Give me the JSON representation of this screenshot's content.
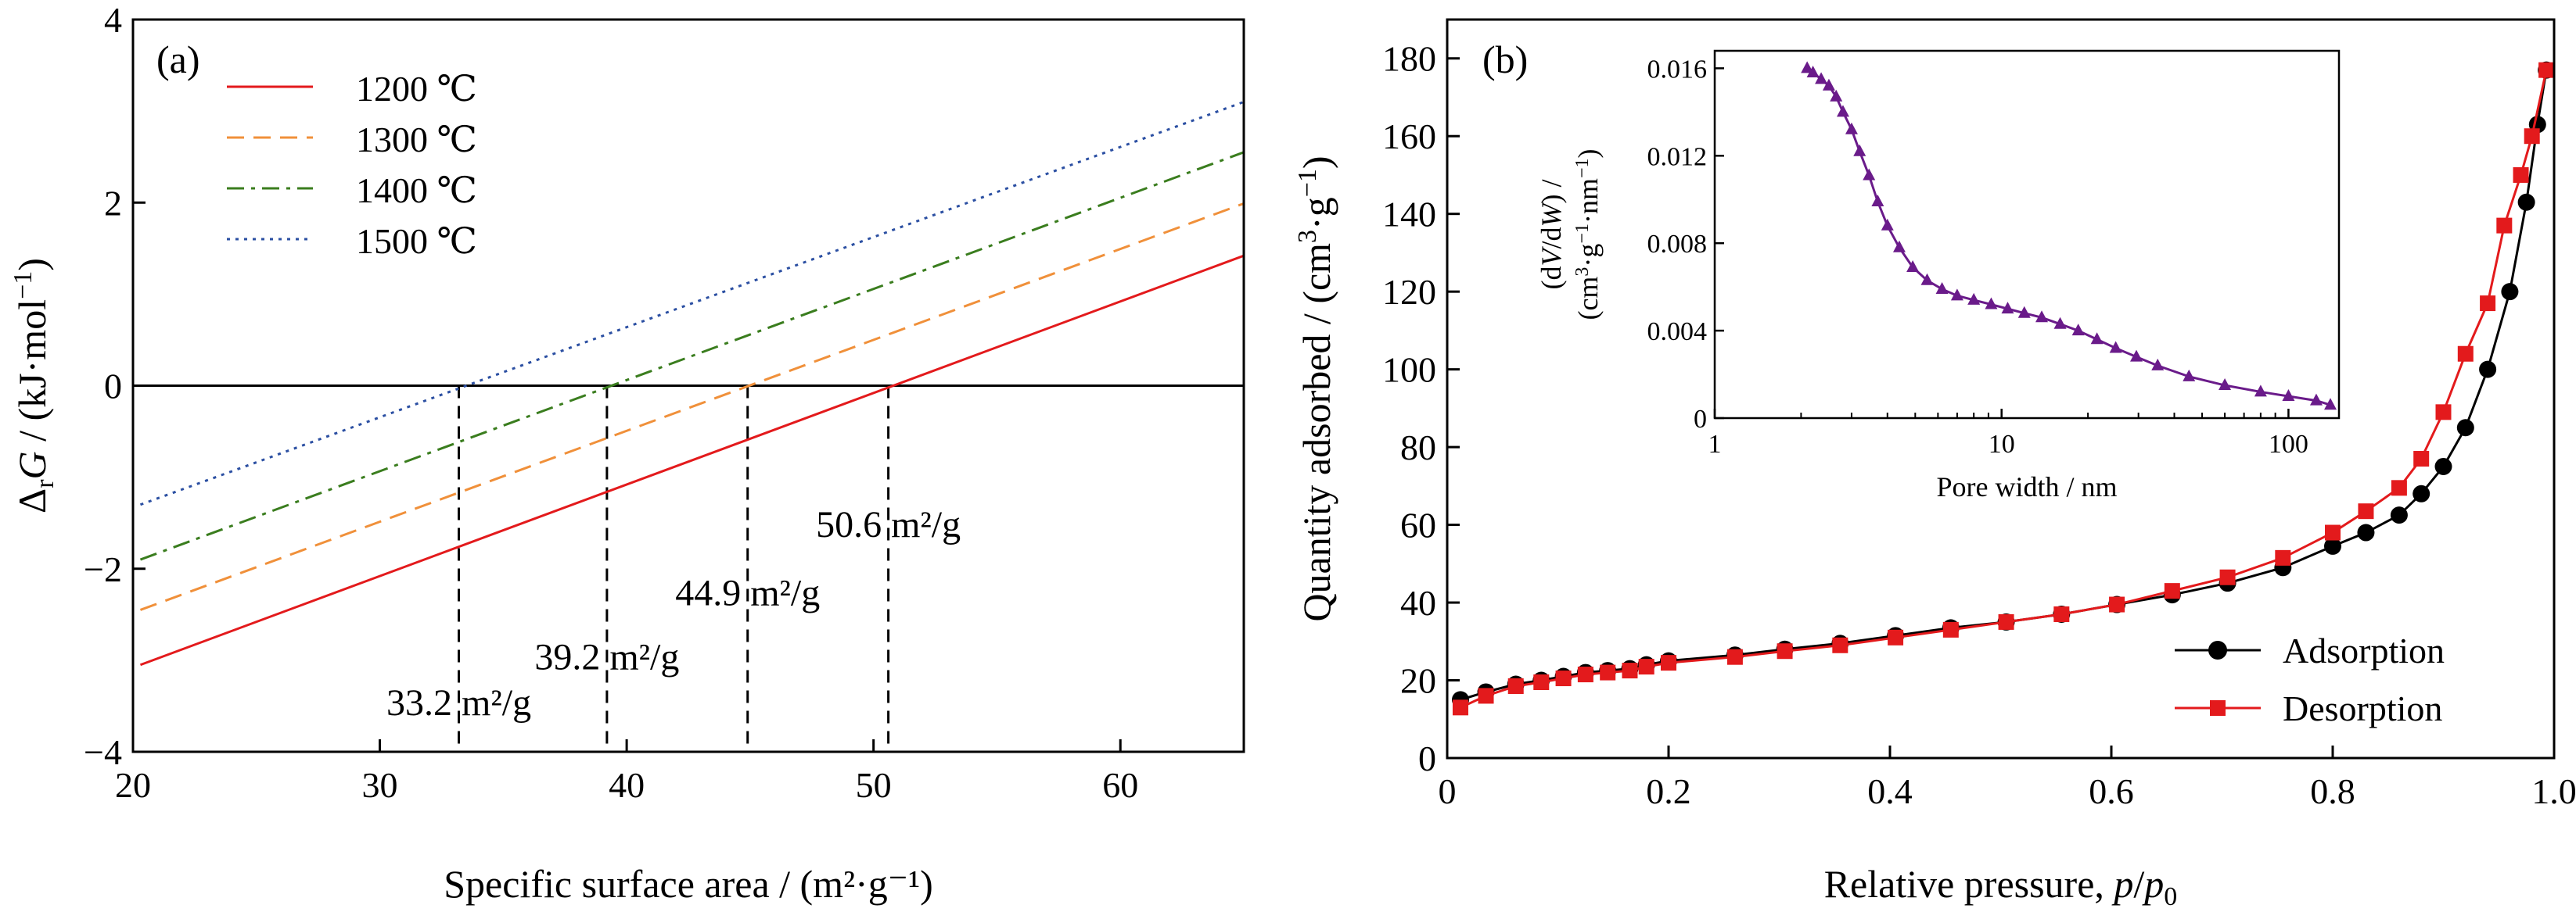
{
  "chart_data": [
    {
      "type": "line",
      "panel_label": "(a)",
      "xlabel": "Specific surface area / (m²·g⁻¹)",
      "ylabel_parts": [
        "Δ",
        "r",
        "G",
        " / (kJ·mol",
        "−1",
        ")"
      ],
      "xlim": [
        20,
        65
      ],
      "ylim": [
        -4,
        4
      ],
      "xticks": [
        20,
        30,
        40,
        50,
        60
      ],
      "yticks": [
        -4,
        -2,
        0,
        2,
        4
      ],
      "series": [
        {
          "name": "1200 ℃",
          "color": "#e31a1c",
          "dash": "solid",
          "x": [
            20.3,
            65
          ],
          "y": [
            -3.05,
            1.42
          ]
        },
        {
          "name": "1300 ℃",
          "color": "#f0903a",
          "dash": "dashed",
          "x": [
            20.3,
            65
          ],
          "y": [
            -2.45,
            1.99
          ]
        },
        {
          "name": "1400 ℃",
          "color": "#3a7d1e",
          "dash": "dashdot",
          "x": [
            20.3,
            65
          ],
          "y": [
            -1.9,
            2.55
          ]
        },
        {
          "name": "1500 ℃",
          "color": "#2b4fa2",
          "dash": "dotted",
          "x": [
            20.3,
            65
          ],
          "y": [
            -1.3,
            3.1
          ]
        }
      ],
      "zero_line": 0,
      "threshold_lines": [
        33.2,
        39.2,
        44.9,
        50.6
      ],
      "annotations": [
        {
          "value": "33.2",
          "unit": "m²/g",
          "x": 33.2,
          "color": "#2b4fa2",
          "anchor_x": 33.2,
          "anchor_y": -3.6
        },
        {
          "value": "39.2",
          "unit": "m²/g",
          "x": 39.2,
          "color": "#3a7d1e",
          "anchor_x": 39.2,
          "anchor_y": -3.1
        },
        {
          "value": "44.9",
          "unit": "m²/g",
          "x": 44.9,
          "color": "#f0903a",
          "anchor_x": 44.9,
          "anchor_y": -2.4
        },
        {
          "value": "50.6",
          "unit": "m²/g",
          "x": 50.6,
          "color": "#e31a1c",
          "anchor_x": 50.6,
          "anchor_y": -1.65
        }
      ],
      "legend_position": "top-left"
    },
    {
      "type": "line",
      "panel_label": "(b)",
      "xlabel_parts": [
        "Relative pressure, ",
        "p",
        "/",
        "p",
        "0"
      ],
      "ylabel_parts": [
        "Quantity adsorbed / (cm",
        "3",
        "·g",
        "−1",
        ")"
      ],
      "xlim": [
        0,
        1.0
      ],
      "ylim": [
        0,
        190
      ],
      "xticks": [
        "0",
        "0.2",
        "0.4",
        "0.6",
        "0.8",
        "1.0"
      ],
      "xtick_values": [
        0,
        0.2,
        0.4,
        0.6,
        0.8,
        1.0
      ],
      "yticks": [
        0,
        20,
        40,
        60,
        80,
        100,
        120,
        140,
        160,
        180
      ],
      "series": [
        {
          "name": "Adsorption",
          "color": "#000000",
          "marker": "circle",
          "x": [
            0.012,
            0.035,
            0.062,
            0.085,
            0.105,
            0.125,
            0.145,
            0.165,
            0.18,
            0.2,
            0.26,
            0.305,
            0.355,
            0.405,
            0.455,
            0.505,
            0.555,
            0.605,
            0.655,
            0.705,
            0.755,
            0.8,
            0.83,
            0.86,
            0.88,
            0.9,
            0.92,
            0.94,
            0.96,
            0.975,
            0.985,
            0.993
          ],
          "y": [
            15,
            17,
            19,
            20,
            21,
            22,
            22.5,
            23,
            24,
            25,
            26.5,
            28,
            29.5,
            31.5,
            33.5,
            35,
            37,
            39.5,
            42,
            45,
            49,
            54.5,
            58,
            62.5,
            68,
            75,
            85,
            100,
            120,
            143,
            163,
            177
          ]
        },
        {
          "name": "Desorption",
          "color": "#e31a1c",
          "marker": "square",
          "x": [
            0.012,
            0.035,
            0.062,
            0.085,
            0.105,
            0.125,
            0.145,
            0.165,
            0.18,
            0.2,
            0.26,
            0.305,
            0.355,
            0.405,
            0.455,
            0.505,
            0.555,
            0.605,
            0.655,
            0.705,
            0.755,
            0.8,
            0.83,
            0.86,
            0.88,
            0.9,
            0.92,
            0.94,
            0.955,
            0.97,
            0.98,
            0.993
          ],
          "y": [
            13,
            16,
            18.5,
            19.5,
            20.5,
            21.5,
            22,
            22.5,
            23.5,
            24.5,
            26,
            27.5,
            29,
            31,
            33,
            35,
            37,
            39.5,
            43,
            46.5,
            51.5,
            58,
            63.5,
            69.5,
            77,
            89,
            104,
            117,
            137,
            150,
            160,
            177
          ]
        }
      ],
      "legend_position": "bottom-right"
    },
    {
      "type": "line",
      "panel": "inset",
      "xlabel": "Pore width / nm",
      "ylabel_line1_parts": [
        "(d",
        "V",
        "/d",
        "W",
        ") /"
      ],
      "ylabel_line2_parts": [
        "(cm",
        "3",
        "·g",
        "−1",
        "·nm",
        "−1",
        ")"
      ],
      "xscale": "log",
      "xlim": [
        1,
        150
      ],
      "ylim": [
        0,
        0.0168
      ],
      "xticks": [
        "1",
        "10",
        "100"
      ],
      "xtick_values": [
        1,
        10,
        100
      ],
      "yticks": [
        "0",
        "0.004",
        "0.008",
        "0.012",
        "0.016"
      ],
      "ytick_values": [
        0,
        0.004,
        0.008,
        0.012,
        0.016
      ],
      "series": [
        {
          "name": "",
          "color": "#6a1b8a",
          "marker": "triangle",
          "x": [
            2.1,
            2.2,
            2.35,
            2.5,
            2.65,
            2.8,
            3.0,
            3.2,
            3.45,
            3.7,
            4.0,
            4.4,
            4.9,
            5.5,
            6.2,
            7.0,
            8.0,
            9.2,
            10.5,
            12.0,
            13.8,
            16.0,
            18.5,
            21.5,
            25.0,
            29.5,
            35.0,
            45.0,
            60.0,
            80.0,
            100.0,
            125.0,
            140.0
          ],
          "y": [
            0.016,
            0.0158,
            0.0155,
            0.0152,
            0.0147,
            0.014,
            0.0132,
            0.0122,
            0.0111,
            0.0099,
            0.0088,
            0.0078,
            0.0069,
            0.0063,
            0.0059,
            0.0056,
            0.0054,
            0.0052,
            0.005,
            0.0048,
            0.0046,
            0.0043,
            0.004,
            0.0036,
            0.0032,
            0.0028,
            0.0024,
            0.0019,
            0.0015,
            0.0012,
            0.001,
            0.0008,
            0.0006
          ]
        }
      ]
    }
  ]
}
